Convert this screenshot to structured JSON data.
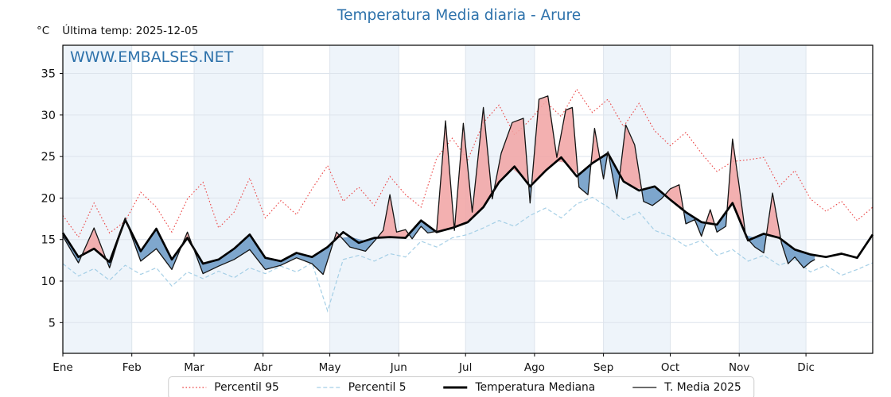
{
  "title": "Temperatura Media diaria - Arure",
  "header": {
    "y_unit_label": "°C",
    "last_temp_label": "Última temp: 2025-12-05"
  },
  "watermark_text": "WWW.EMBALSES.NET",
  "colors": {
    "title_blue": "#2e72ab",
    "watermark_blue": "#2e72ab",
    "month_band": "#eef4fa",
    "gridline": "#dde4ec",
    "axis_spine": "#000000",
    "percentil95": "#ea3c3c",
    "percentil5": "#a5cfe6",
    "mediana": "#000000",
    "t2025": "#141414",
    "fill_above": "#f1a5a5",
    "fill_below": "#6d9bc6",
    "legend_border": "#cccccc"
  },
  "chart_data": {
    "type": "line",
    "title": "Temperatura Media diaria - Arure",
    "ylabel": "°C",
    "ylim": [
      1.3,
      38.4
    ],
    "xlim_days": [
      1,
      365
    ],
    "y_ticks": [
      5,
      10,
      15,
      20,
      25,
      30,
      35
    ],
    "x_tick_labels": [
      "Ene",
      "Feb",
      "Mar",
      "Abr",
      "May",
      "Jun",
      "Jul",
      "Ago",
      "Sep",
      "Oct",
      "Nov",
      "Dic"
    ],
    "x_tick_days": [
      1,
      32,
      60,
      91,
      121,
      152,
      182,
      213,
      244,
      274,
      305,
      335
    ],
    "grid": true,
    "month_bands_on_odd_months": true,
    "legend_position": "bottom-center",
    "last_data_day_2025": 339,
    "series": [
      {
        "name": "Percentil 95",
        "style": "dotted",
        "color": "#ea3c3c",
        "width": 1.1,
        "x": [
          1,
          8,
          15,
          22,
          29,
          36,
          43,
          50,
          57,
          64,
          71,
          78,
          85,
          92,
          99,
          106,
          113,
          120,
          127,
          134,
          141,
          148,
          155,
          162,
          169,
          176,
          183,
          190,
          197,
          204,
          211,
          218,
          225,
          232,
          239,
          246,
          253,
          260,
          267,
          274,
          281,
          288,
          295,
          302,
          309,
          316,
          323,
          330,
          337,
          344,
          351,
          358,
          365
        ],
        "values": [
          17.9,
          15.3,
          19.4,
          15.8,
          17.2,
          20.7,
          18.9,
          15.9,
          19.9,
          21.9,
          16.4,
          18.3,
          22.4,
          17.6,
          19.7,
          18.0,
          21.1,
          23.9,
          19.6,
          21.3,
          19.1,
          22.6,
          20.4,
          18.9,
          24.8,
          27.2,
          24.6,
          29.1,
          31.2,
          27.6,
          29.4,
          31.6,
          29.8,
          33.1,
          30.3,
          31.9,
          28.6,
          31.4,
          28.1,
          26.3,
          27.9,
          25.4,
          23.2,
          24.4,
          24.6,
          24.9,
          21.4,
          23.3,
          19.9,
          18.4,
          19.6,
          17.3,
          18.9
        ]
      },
      {
        "name": "Percentil 5",
        "style": "dashed",
        "color": "#a5cfe6",
        "width": 1.2,
        "x": [
          1,
          8,
          15,
          22,
          29,
          36,
          43,
          50,
          57,
          64,
          71,
          78,
          85,
          92,
          99,
          106,
          113,
          120,
          127,
          134,
          141,
          148,
          155,
          162,
          169,
          176,
          183,
          190,
          197,
          204,
          211,
          218,
          225,
          232,
          239,
          246,
          253,
          260,
          267,
          274,
          281,
          288,
          295,
          302,
          309,
          316,
          323,
          330,
          337,
          344,
          351,
          358,
          365
        ],
        "values": [
          12.1,
          10.6,
          11.5,
          10.1,
          11.9,
          10.8,
          11.6,
          9.4,
          11.1,
          10.3,
          11.2,
          10.4,
          11.6,
          10.9,
          11.8,
          11.1,
          12.2,
          6.4,
          12.6,
          13.1,
          12.4,
          13.3,
          12.9,
          14.8,
          14.1,
          15.2,
          15.6,
          16.4,
          17.3,
          16.6,
          17.9,
          18.8,
          17.6,
          19.3,
          20.1,
          18.9,
          17.4,
          18.3,
          16.1,
          15.4,
          14.2,
          14.9,
          13.1,
          13.8,
          12.4,
          13.1,
          11.9,
          12.6,
          11.1,
          11.9,
          10.7,
          11.4,
          12.2
        ]
      },
      {
        "name": "Temperatura Mediana",
        "style": "solid",
        "color": "#000000",
        "width": 2.7,
        "x": [
          1,
          8,
          15,
          22,
          29,
          36,
          43,
          50,
          57,
          64,
          71,
          78,
          85,
          92,
          99,
          106,
          113,
          120,
          127,
          134,
          141,
          148,
          155,
          162,
          169,
          176,
          183,
          190,
          197,
          204,
          211,
          218,
          225,
          232,
          239,
          246,
          253,
          260,
          267,
          274,
          281,
          288,
          295,
          302,
          309,
          316,
          323,
          330,
          337,
          344,
          351,
          358,
          365
        ],
        "values": [
          15.8,
          12.9,
          13.9,
          12.3,
          17.4,
          13.6,
          16.3,
          12.6,
          15.2,
          12.1,
          12.6,
          13.9,
          15.6,
          12.8,
          12.4,
          13.4,
          12.9,
          14.1,
          15.9,
          14.6,
          15.2,
          15.3,
          15.2,
          17.3,
          15.9,
          16.4,
          17.1,
          18.9,
          21.9,
          23.8,
          21.4,
          23.3,
          24.9,
          22.6,
          24.2,
          25.4,
          22.0,
          20.9,
          21.4,
          19.8,
          18.3,
          17.1,
          16.8,
          19.4,
          14.9,
          15.7,
          15.2,
          13.8,
          13.2,
          12.9,
          13.3,
          12.8,
          15.6
        ]
      },
      {
        "name": "T. Media 2025",
        "style": "solid",
        "color": "#141414",
        "width": 1.3,
        "fill_reference": "Temperatura Mediana",
        "fill_above_color": "#f1a5a5",
        "fill_below_color": "#6d9bc6",
        "x": [
          1,
          8,
          15,
          22,
          29,
          36,
          43,
          50,
          57,
          64,
          71,
          78,
          85,
          92,
          99,
          106,
          113,
          118,
          124,
          130,
          137,
          141,
          145,
          148,
          151,
          155,
          158,
          162,
          165,
          169,
          173,
          177,
          181,
          185,
          190,
          194,
          198,
          203,
          208,
          211,
          215,
          219,
          223,
          227,
          230,
          233,
          237,
          240,
          244,
          246,
          250,
          254,
          258,
          262,
          266,
          270,
          274,
          278,
          281,
          285,
          288,
          292,
          295,
          299,
          302,
          305,
          308,
          312,
          316,
          320,
          324,
          327,
          330,
          334,
          337,
          339
        ],
        "values": [
          15.4,
          12.2,
          16.4,
          11.6,
          17.6,
          12.4,
          13.9,
          11.4,
          15.9,
          10.9,
          11.8,
          12.6,
          13.8,
          11.4,
          11.9,
          12.8,
          12.1,
          10.8,
          15.9,
          14.1,
          13.6,
          14.8,
          16.1,
          20.4,
          15.9,
          16.2,
          15.1,
          16.6,
          15.8,
          16.0,
          29.3,
          16.1,
          29.0,
          18.3,
          30.9,
          19.9,
          25.4,
          29.1,
          29.6,
          19.4,
          31.9,
          32.3,
          24.9,
          30.6,
          30.9,
          21.3,
          20.4,
          28.4,
          22.3,
          25.6,
          19.9,
          28.8,
          26.4,
          19.6,
          19.1,
          19.9,
          21.1,
          21.6,
          16.9,
          17.4,
          15.4,
          18.6,
          15.9,
          16.6,
          27.1,
          21.4,
          15.3,
          14.1,
          13.4,
          20.6,
          14.6,
          12.1,
          12.9,
          11.6,
          12.3,
          12.6
        ]
      }
    ]
  }
}
